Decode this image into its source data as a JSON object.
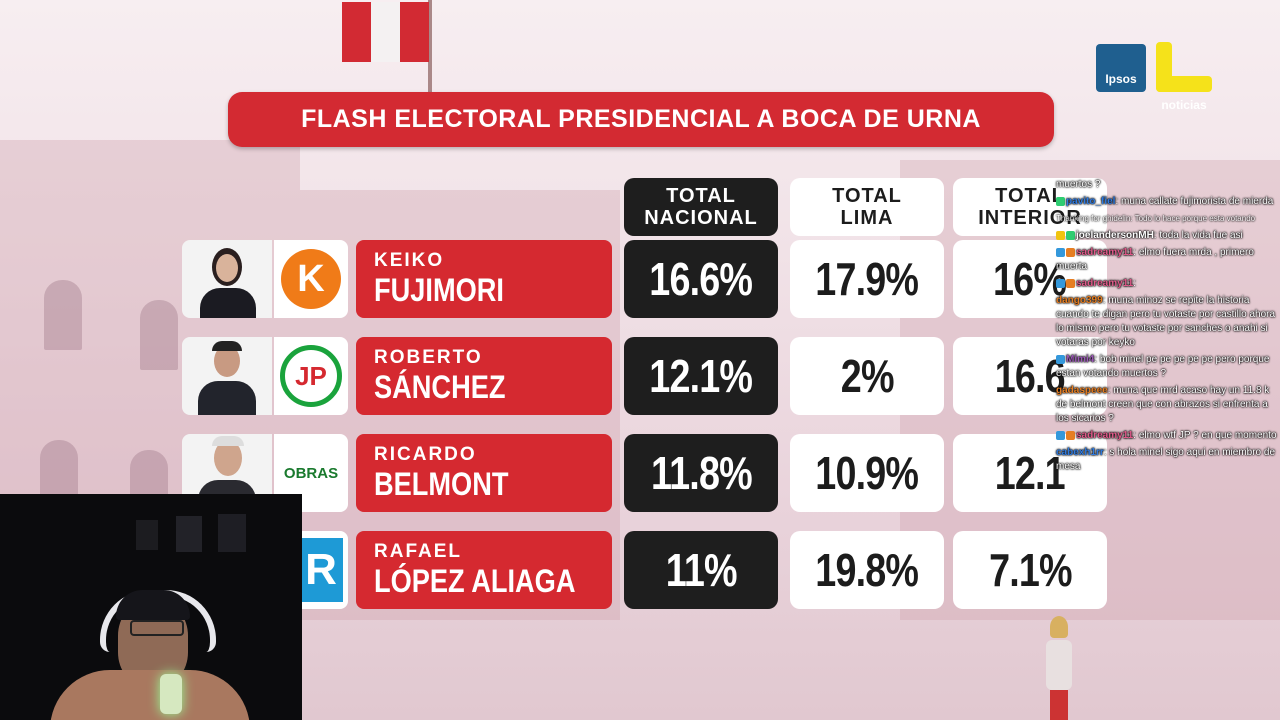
{
  "banner": {
    "title": "FLASH ELECTORAL PRESIDENCIAL A BOCA DE URNA"
  },
  "headers": [
    {
      "line1": "TOTAL",
      "line2": "NACIONAL"
    },
    {
      "line1": "TOTAL",
      "line2": "LIMA"
    },
    {
      "line1": "TOTAL",
      "line2": "INTERIOR"
    }
  ],
  "candidates": [
    {
      "first": "KEIKO",
      "last": "FUJIMORI",
      "nacional": "16.6%",
      "lima": "17.9%",
      "interior": "16%",
      "logo": "K"
    },
    {
      "first": "ROBERTO",
      "last": "SÁNCHEZ",
      "nacional": "12.1%",
      "lima": "2%",
      "interior": "16.6",
      "logo": "JP"
    },
    {
      "first": "RICARDO",
      "last": "BELMONT",
      "nacional": "11.8%",
      "lima": "10.9%",
      "interior": "12.1",
      "logo": "OBRAS"
    },
    {
      "first": "RAFAEL",
      "last": "LÓPEZ ALIAGA",
      "nacional": "11%",
      "lima": "19.8%",
      "interior": "7.1%",
      "logo": "R"
    }
  ],
  "brand": {
    "ipsos": "Ipsos",
    "news": "noticias"
  },
  "colors": {
    "red": "#d52930",
    "dark": "#1e1e1e",
    "light": "#ffffff",
    "keiko_orange": "#f07b18",
    "jp_green": "#1aa33c"
  },
  "chat": [
    {
      "user": "",
      "text": "muertos ?"
    },
    {
      "user": "pavito_fiel",
      "text": ": muna callate fujimorista de mierda"
    },
    {
      "user": "",
      "text": "Thanking for ghidelin: Todo lo hace porque esta votando"
    },
    {
      "user": "joelandersonMH",
      "text": ": toda la vida fue asi"
    },
    {
      "user": "sadreamy11",
      "text": ": elmo fuera mrda , primero muerta"
    },
    {
      "user": "sadreamy11",
      "text": ":"
    },
    {
      "user": "dango399",
      "text": ": muna minoz se repite la historia cuando te digan pero tu votaste por castillo ahora lo mismo pero tu votaste por sanches o anahi si votaras por keyko"
    },
    {
      "user": "Mimi4",
      "text": ": bob minel pe pe pe pe pe pero porque estan votando muertos ?"
    },
    {
      "user": "gadaspeee",
      "text": ": muna que mrd acaso hay un 11.8 k de belmont creen que con abrazos si enfrenta a los sicarios ?"
    },
    {
      "user": "sadreamy11",
      "text": ": elmo wtf JP ? en que momento"
    },
    {
      "user": "cabexh1rr",
      "text": ": s hola minel sigo aqui en miembro de mesa"
    }
  ]
}
